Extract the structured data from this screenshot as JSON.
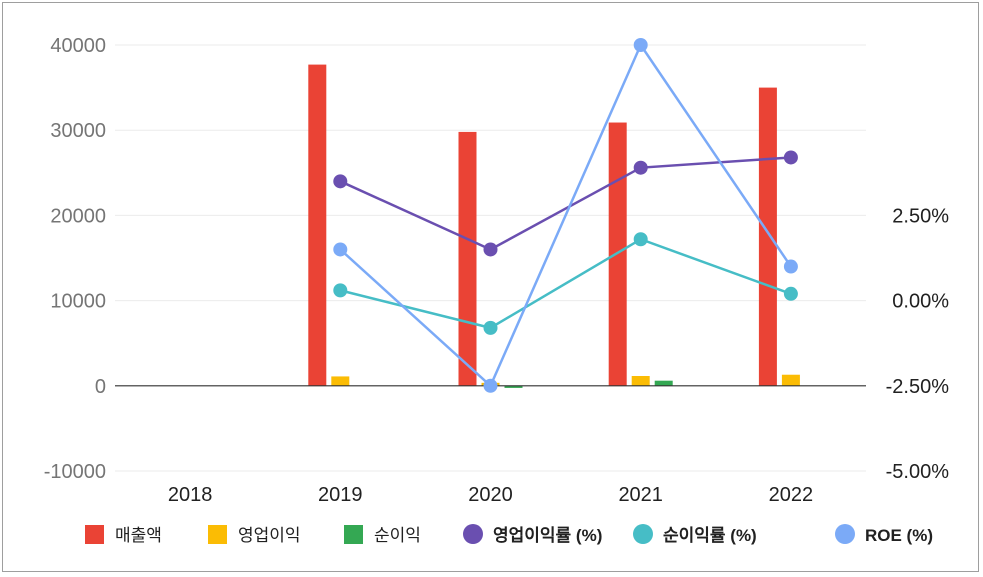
{
  "chart_data": {
    "type": "bar",
    "categories": [
      "2018",
      "2019",
      "2020",
      "2021",
      "2022"
    ],
    "series": [
      {
        "name": "매출액",
        "kind": "bar",
        "axis": "left",
        "color": "#ea4335",
        "values": [
          null,
          37700,
          29800,
          30900,
          35000
        ]
      },
      {
        "name": "영업이익",
        "kind": "bar",
        "axis": "left",
        "color": "#fbbc04",
        "values": [
          null,
          1100,
          350,
          1150,
          1300
        ]
      },
      {
        "name": "순이익",
        "kind": "bar",
        "axis": "left",
        "color": "#34a853",
        "values": [
          null,
          null,
          -250,
          600,
          null
        ]
      },
      {
        "name": "영업이익률 (%)",
        "kind": "line",
        "axis": "right",
        "color": "#6a4fb0",
        "values": [
          null,
          3.5,
          1.5,
          3.9,
          4.2
        ]
      },
      {
        "name": "순이익률 (%)",
        "kind": "line",
        "axis": "right",
        "color": "#46bdc6",
        "values": [
          null,
          0.3,
          -0.8,
          1.8,
          0.2
        ]
      },
      {
        "name": "ROE (%)",
        "kind": "line",
        "axis": "right",
        "color": "#7baaf7",
        "values": [
          null,
          1.5,
          -2.5,
          7.5,
          1.0
        ]
      }
    ],
    "left_axis": {
      "ylim": [
        -10000,
        40000
      ],
      "ticks": [
        "40000",
        "30000",
        "20000",
        "10000",
        "0",
        "-10000"
      ]
    },
    "right_axis": {
      "ylim": [
        -5.0,
        7.5
      ],
      "ticks": [
        "2.50%",
        "0.00%",
        "-2.50%",
        "-5.00%"
      ],
      "tick_values": [
        2.5,
        0,
        -2.5,
        -5.0
      ]
    },
    "legend": {
      "position": "bottom"
    },
    "grid": true
  }
}
